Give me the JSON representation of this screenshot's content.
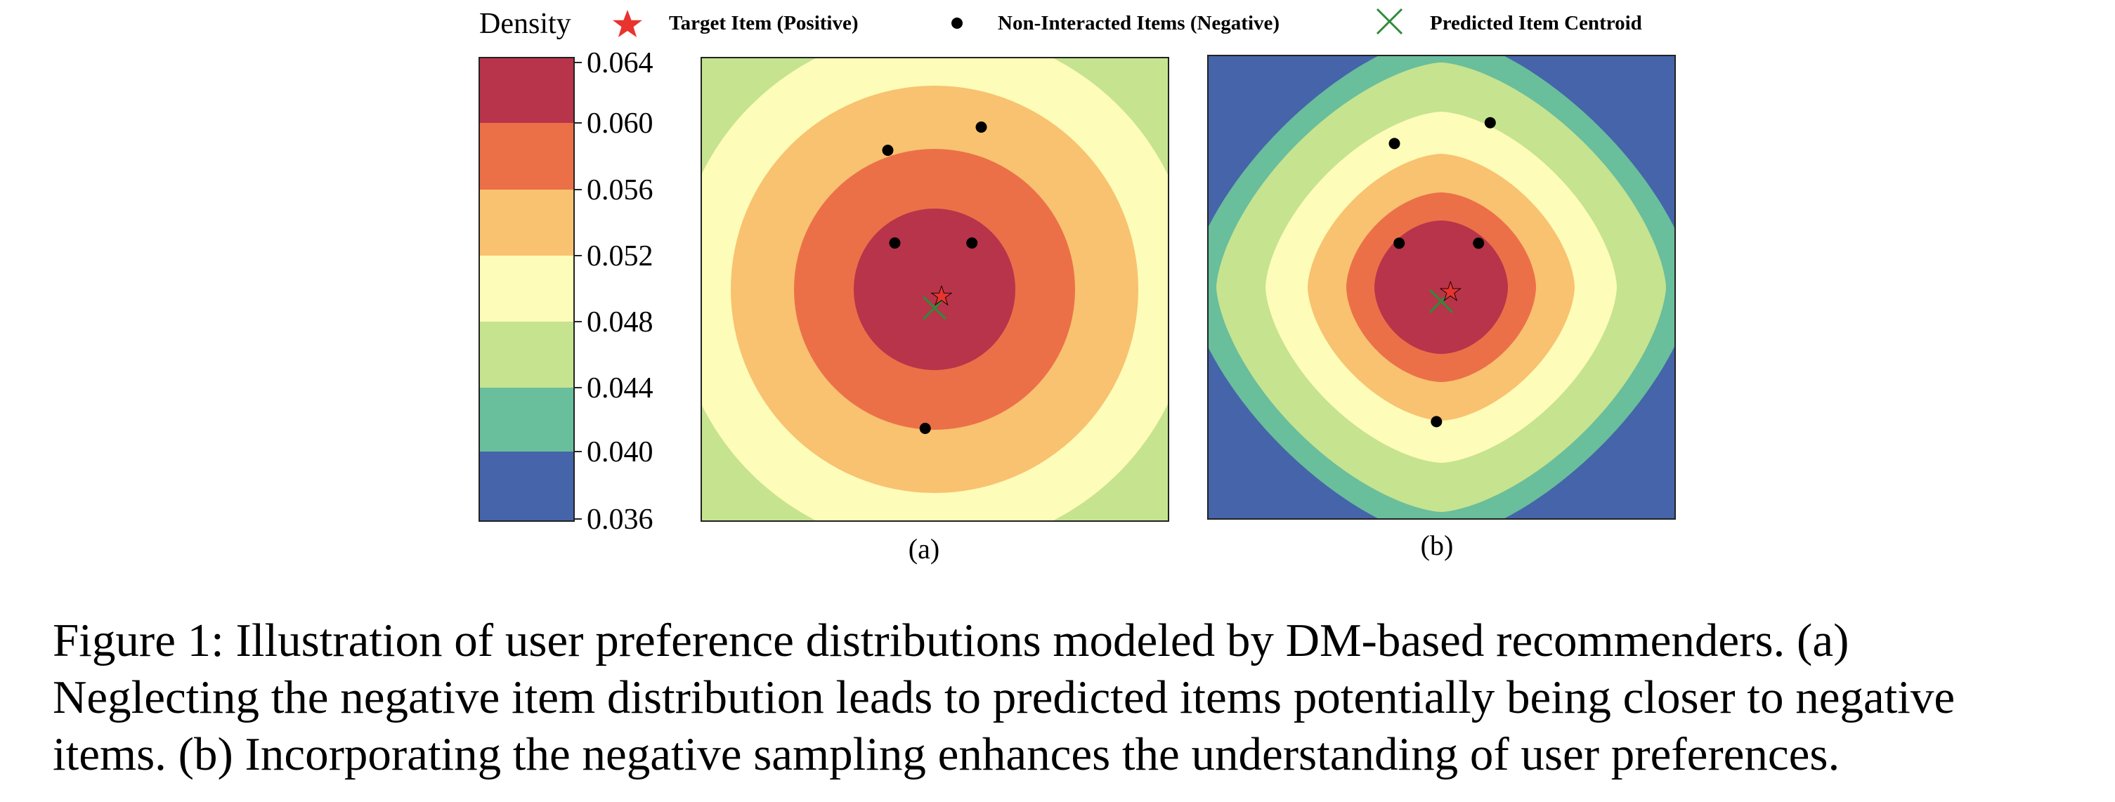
{
  "chart_data": [
    {
      "type": "contour",
      "panel_label": "(a)",
      "levels": [
        0.036,
        0.04,
        0.044,
        0.048,
        0.052,
        0.056,
        0.06,
        0.064
      ],
      "shape": "circular",
      "target": {
        "x": 0.03,
        "y": -0.03,
        "series": "Target Item (Positive)"
      },
      "centroid": {
        "x": 0.0,
        "y": -0.08,
        "series": "Predicted Item Centroid"
      },
      "negatives": [
        {
          "x": -0.2,
          "y": 0.6
        },
        {
          "x": 0.2,
          "y": 0.7
        },
        {
          "x": -0.17,
          "y": 0.2
        },
        {
          "x": 0.16,
          "y": 0.2
        },
        {
          "x": -0.04,
          "y": -0.6
        }
      ]
    },
    {
      "type": "contour",
      "panel_label": "(b)",
      "levels": [
        0.036,
        0.04,
        0.044,
        0.048,
        0.052,
        0.056,
        0.06,
        0.064
      ],
      "shape": "diamond",
      "target": {
        "x": 0.04,
        "y": -0.02,
        "series": "Target Item (Positive)"
      },
      "centroid": {
        "x": 0.0,
        "y": -0.06,
        "series": "Predicted Item Centroid"
      },
      "negatives": [
        {
          "x": -0.2,
          "y": 0.62
        },
        {
          "x": 0.21,
          "y": 0.71
        },
        {
          "x": -0.18,
          "y": 0.19
        },
        {
          "x": 0.16,
          "y": 0.19
        },
        {
          "x": -0.02,
          "y": -0.58
        }
      ]
    }
  ],
  "colorbar": {
    "title": "Density",
    "ticks": [
      "0.064",
      "0.060",
      "0.056",
      "0.052",
      "0.048",
      "0.044",
      "0.040",
      "0.036"
    ],
    "colors": [
      "#b8344a",
      "#eb7048",
      "#f8c270",
      "#fdfcb9",
      "#c6e38f",
      "#69be9c",
      "#4564a9"
    ]
  },
  "legend": [
    {
      "label": "Target Item (Positive)",
      "marker": "red-star",
      "color": "#e8332e"
    },
    {
      "label": "Non-Interacted Items (Negative)",
      "marker": "black-dot",
      "color": "#000000"
    },
    {
      "label": "Predicted Item Centroid",
      "marker": "green-x",
      "color": "#2e8b3a"
    }
  ],
  "caption": {
    "line1": "Figure 1: Illustration of user preference distributions modeled by DM-based recommenders. (a)",
    "line2": "Neglecting the negative item distribution leads to predicted items potentially being closer to negative",
    "line3": "items. (b) Incorporating the negative sampling enhances the understanding of user preferences."
  }
}
